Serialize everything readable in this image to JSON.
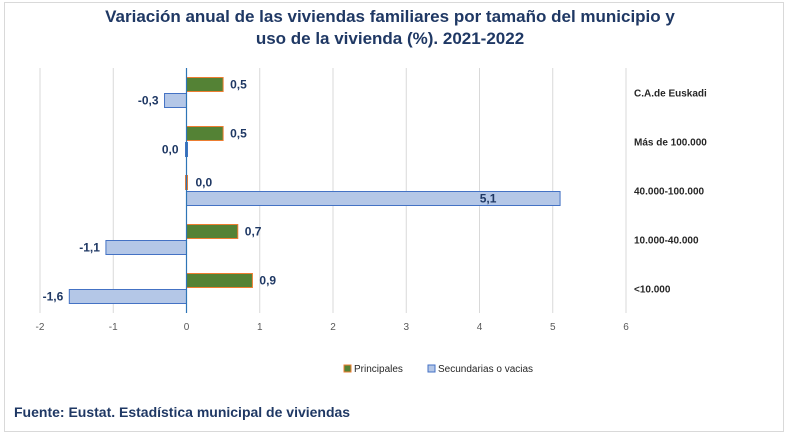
{
  "chart_data": {
    "type": "bar",
    "orientation": "horizontal",
    "title_line1": "Variación anual de las viviendas familiares por tamaño del municipio y",
    "title_line2": "uso de la vivienda (%). 2021-2022",
    "categories": [
      "C.A.de Euskadi",
      "Más de 100.000",
      "40.000-100.000",
      "10.000-40.000",
      "<10.000"
    ],
    "series": [
      {
        "name": "Principales",
        "values": [
          0.5,
          0.5,
          0.0,
          0.7,
          0.9
        ],
        "labels": [
          "0,5",
          "0,5",
          "0,0",
          "0,7",
          "0,9"
        ],
        "color": "#548235",
        "border": "#ed7d31"
      },
      {
        "name": "Secundarias o vacias",
        "values": [
          -0.3,
          0.0,
          5.1,
          -1.1,
          -1.6
        ],
        "labels": [
          "-0,3",
          "0,0",
          "5,1",
          "-1,1",
          "-1,6"
        ],
        "color": "#b4c7e7",
        "border": "#4472c4"
      }
    ],
    "xlim": [
      -2,
      6
    ],
    "xticks": [
      "-2",
      "-1",
      "0",
      "1",
      "2",
      "3",
      "4",
      "5",
      "6"
    ],
    "grid": true,
    "legend": "bottom"
  },
  "source": "Fuente: Eustat. Estadística municipal de viviendas"
}
